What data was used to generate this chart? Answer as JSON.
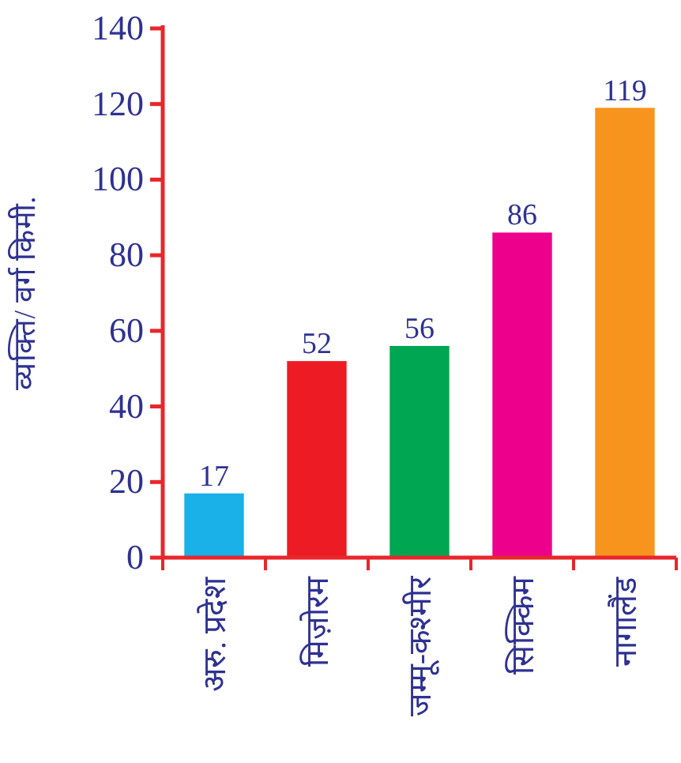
{
  "chart_data": {
    "type": "bar",
    "ylabel": "व्यक्ति/ वर्ग किमी.",
    "categories": [
      "अरु. प्रदेश",
      "मिज़ोरम",
      "जम्मू-कश्मीर",
      "सिक्किम",
      "नागालैंड"
    ],
    "values": [
      17,
      52,
      56,
      86,
      119
    ],
    "colors": [
      "#1ab0e8",
      "#ed1c24",
      "#00a651",
      "#ec008c",
      "#f7941d"
    ],
    "ylim": [
      0,
      140
    ],
    "yticks": [
      0,
      20,
      40,
      60,
      80,
      100,
      120,
      140
    ],
    "data_labels": true
  }
}
